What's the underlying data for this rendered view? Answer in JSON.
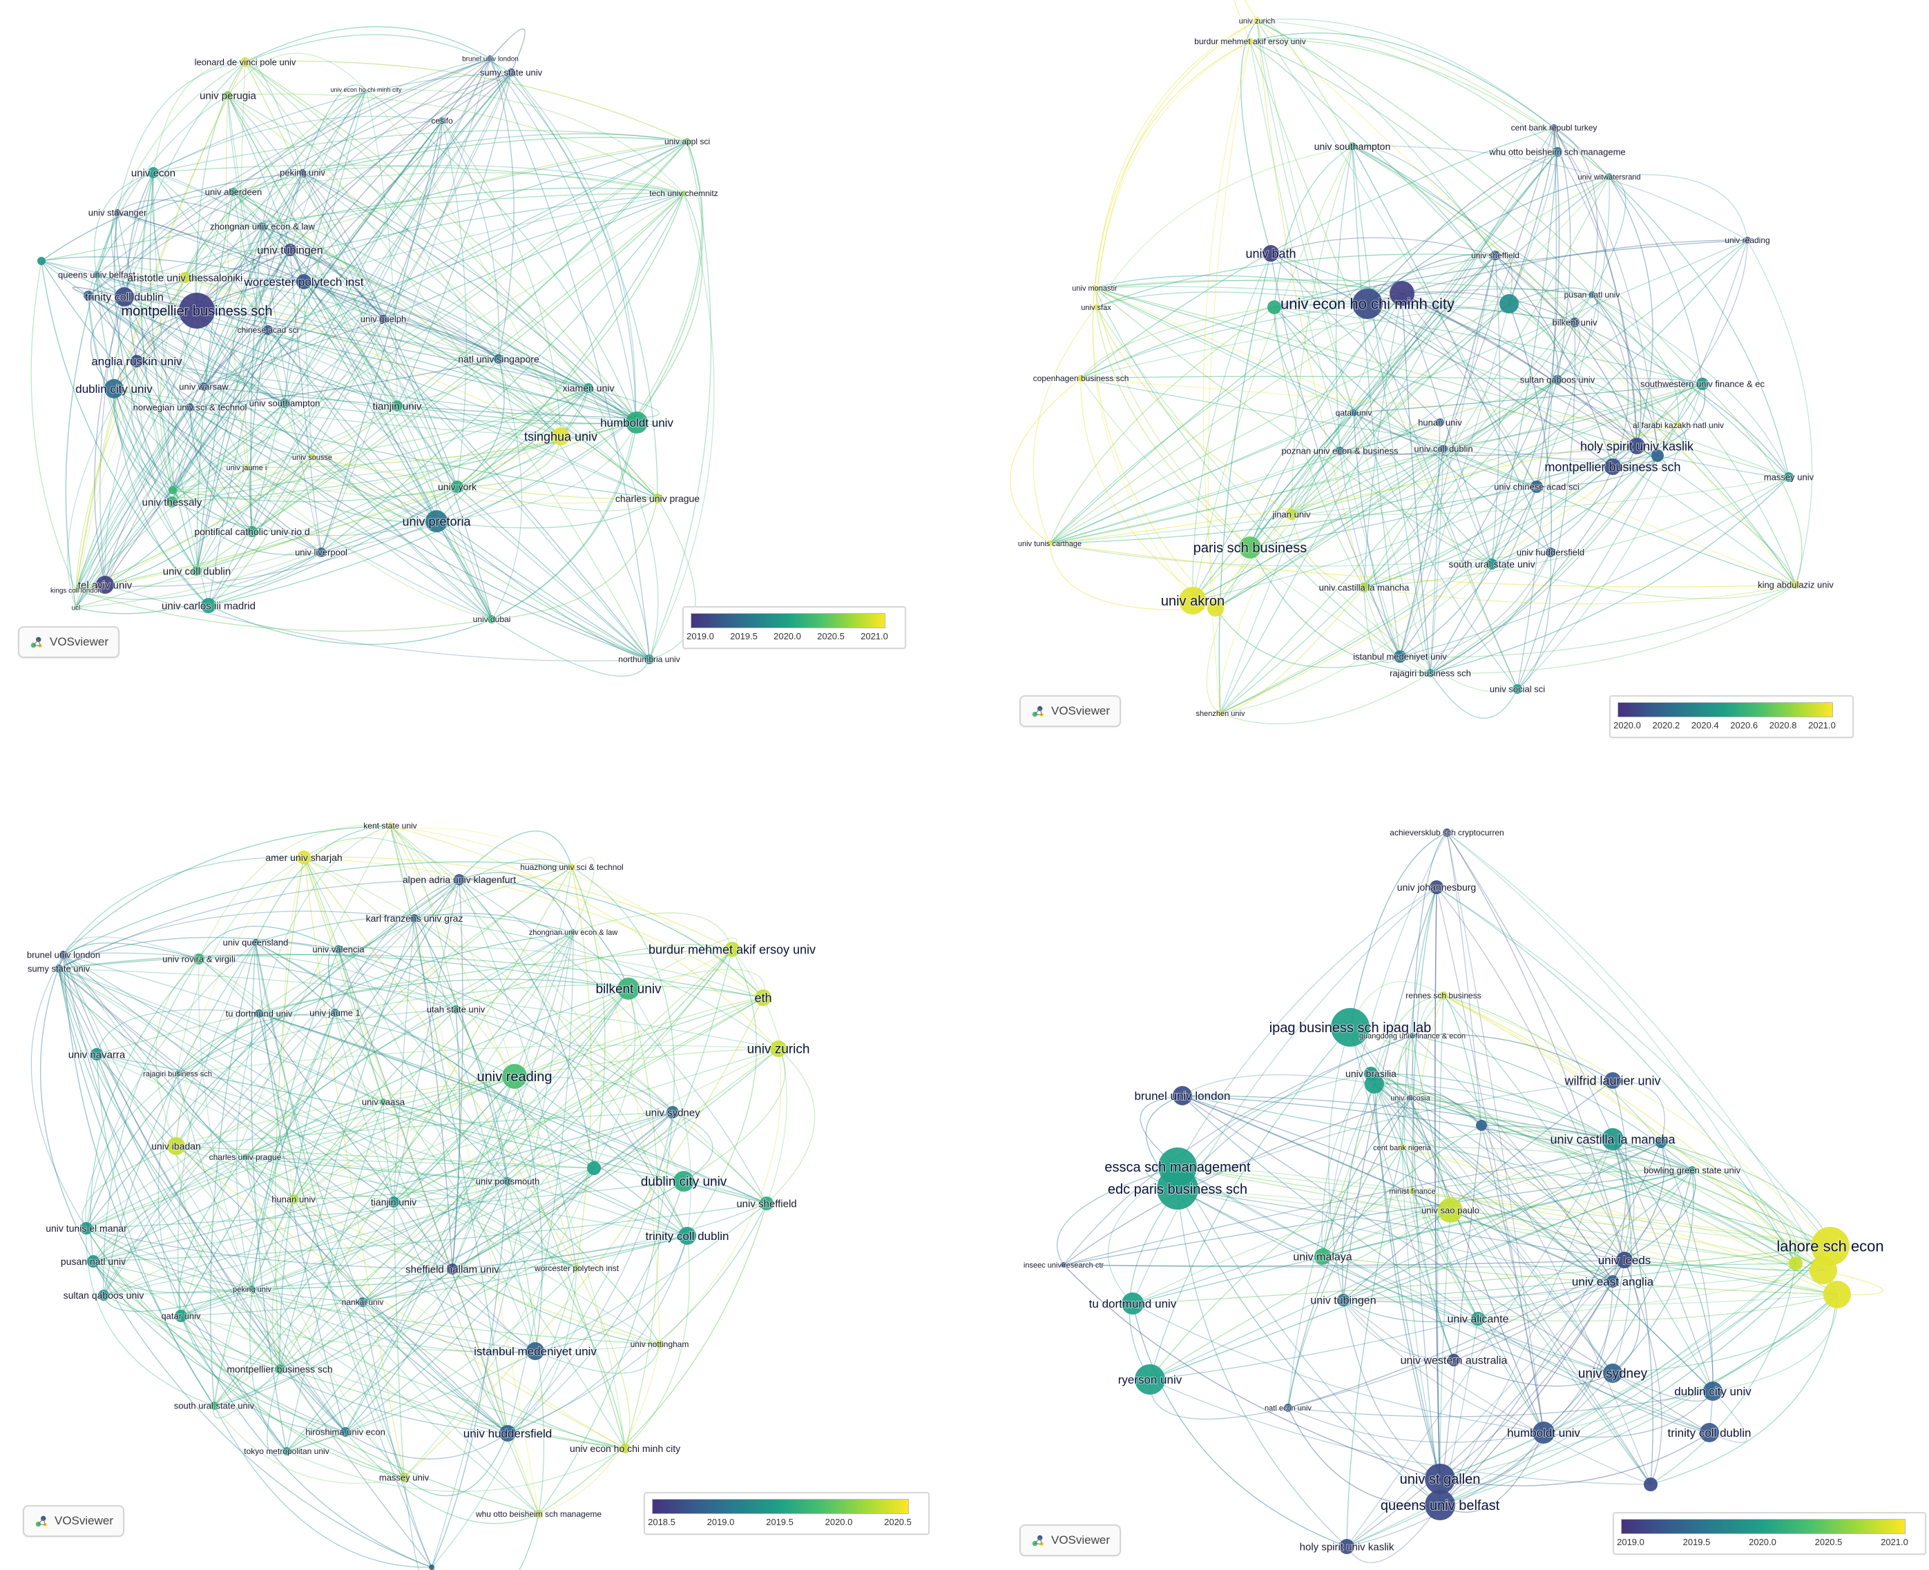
{
  "app": {
    "logo_text": "VOSviewer"
  },
  "colormap": [
    "#46327e",
    "#365c8d",
    "#277f8e",
    "#1fa187",
    "#4ac16d",
    "#a0da39",
    "#fde725"
  ],
  "panels": [
    {
      "id": "top-left",
      "legend_ticks": [
        "2019.0",
        "2019.5",
        "2020.0",
        "2020.5",
        "2021.0"
      ],
      "nodes": [
        {
          "label": "leonard de vinci pole univ",
          "t": 0.95
        },
        {
          "label": "univ econ ho chi minh city",
          "t": 0.6
        },
        {
          "label": "univ perugia",
          "t": 0.75
        },
        {
          "label": "brunel univ london",
          "t": 0.2
        },
        {
          "label": "sumy state univ",
          "t": 0.15
        },
        {
          "label": "cesifo",
          "t": 0.35
        },
        {
          "label": "univ appl sci",
          "t": 0.7
        },
        {
          "label": "tech univ chemnitz",
          "t": 0.8
        },
        {
          "label": "univ econ",
          "t": 0.5
        },
        {
          "label": "peking univ",
          "t": 0.1
        },
        {
          "label": "univ aberdeen",
          "t": 0.55
        },
        {
          "label": "univ stavanger",
          "t": 0.1
        },
        {
          "label": "zhongnan univ econ & law",
          "t": 0.3
        },
        {
          "label": "univ tubingen",
          "t": 0.1
        },
        {
          "label": "queens univ belfast",
          "t": 0.4
        },
        {
          "label": "aristotle univ thessaloniki",
          "t": 0.9
        },
        {
          "label": "worcester polytech inst",
          "t": 0.15
        },
        {
          "label": "trinity coll dublin",
          "t": 0.1
        },
        {
          "label": "montpellier business sch",
          "t": 0.05
        },
        {
          "label": "chinese acad sci",
          "t": 0.15
        },
        {
          "label": "univ guelph",
          "t": 0.1
        },
        {
          "label": "anglia ruskin univ",
          "t": 0.1
        },
        {
          "label": "natl univ singapore",
          "t": 0.3
        },
        {
          "label": "dublin city univ",
          "t": 0.25
        },
        {
          "label": "univ warsaw",
          "t": 0.2
        },
        {
          "label": "norwegian univ sci & technol",
          "t": 0.15
        },
        {
          "label": "univ southampton",
          "t": 0.45
        },
        {
          "label": "tianjin univ",
          "t": 0.55
        },
        {
          "label": "xiamen univ",
          "t": 0.5
        },
        {
          "label": "tsinghua univ",
          "t": 0.95
        },
        {
          "label": "humboldt univ",
          "t": 0.55
        },
        {
          "label": "univ jaume i",
          "t": 0.95
        },
        {
          "label": "univ sousse",
          "t": 0.9
        },
        {
          "label": "univ thessaly",
          "t": 0.6
        },
        {
          "label": "univ york",
          "t": 0.55
        },
        {
          "label": "charles univ prague",
          "t": 0.85
        },
        {
          "label": "univ pretoria",
          "t": 0.3
        },
        {
          "label": "pontifical catholic univ rio d",
          "t": 0.55
        },
        {
          "label": "univ liverpool",
          "t": 0.25
        },
        {
          "label": "univ coll dublin",
          "t": 0.6
        },
        {
          "label": "tel aviv univ",
          "t": 0.05
        },
        {
          "label": "kings coll london",
          "t": 0.85
        },
        {
          "label": "ucl",
          "t": 0.8
        },
        {
          "label": "univ carlos iii madrid",
          "t": 0.5
        },
        {
          "label": "univ dubai",
          "t": 0.6
        },
        {
          "label": "northumbria univ",
          "t": 0.45
        }
      ]
    },
    {
      "id": "top-right",
      "legend_ticks": [
        "2020.0",
        "2020.2",
        "2020.4",
        "2020.6",
        "2020.8",
        "2021.0"
      ],
      "nodes": [
        {
          "label": "univ zurich",
          "t": 0.95
        },
        {
          "label": "burdur mehmet akif ersoy univ",
          "t": 0.95
        },
        {
          "label": "cent bank republ turkey",
          "t": 0.1
        },
        {
          "label": "whu otto beisheim sch manageme",
          "t": 0.3
        },
        {
          "label": "univ southampton",
          "t": 0.55
        },
        {
          "label": "univ witwatersrand",
          "t": 0.5
        },
        {
          "label": "univ reading",
          "t": 0.1
        },
        {
          "label": "univ bath",
          "t": 0.05
        },
        {
          "label": "univ sheffield",
          "t": 0.2
        },
        {
          "label": "univ monastir",
          "t": 0.95
        },
        {
          "label": "univ sfax",
          "t": 0.95
        },
        {
          "label": "univ econ ho chi minh city",
          "t": 0.1
        },
        {
          "label": "pusan natl univ",
          "t": 0.3
        },
        {
          "label": "bilkent univ",
          "t": 0.15
        },
        {
          "label": "copenhagen business sch",
          "t": 0.95
        },
        {
          "label": "sultan qaboos univ",
          "t": 0.3
        },
        {
          "label": "southwestern univ finance & ec",
          "t": 0.45
        },
        {
          "label": "qatar univ",
          "t": 0.25
        },
        {
          "label": "hunan univ",
          "t": 0.2
        },
        {
          "label": "al farabi kazakh natl univ",
          "t": 0.95
        },
        {
          "label": "poznan univ econ & business",
          "t": 0.3
        },
        {
          "label": "univ coll dublin",
          "t": 0.2
        },
        {
          "label": "holy spirit univ kaslik",
          "t": 0.1
        },
        {
          "label": "montpellier business sch",
          "t": 0.1
        },
        {
          "label": "univ chinese acad sci",
          "t": 0.2
        },
        {
          "label": "massey univ",
          "t": 0.45
        },
        {
          "label": "jinan univ",
          "t": 0.9
        },
        {
          "label": "univ tunis carthage",
          "t": 0.95
        },
        {
          "label": "paris sch business",
          "t": 0.7
        },
        {
          "label": "univ huddersfield",
          "t": 0.2
        },
        {
          "label": "south ural state univ",
          "t": 0.45
        },
        {
          "label": "univ castilla la mancha",
          "t": 0.85
        },
        {
          "label": "king abdulaziz univ",
          "t": 0.95
        },
        {
          "label": "univ akron",
          "t": 0.95
        },
        {
          "label": "istanbul medeniyet univ",
          "t": 0.3
        },
        {
          "label": "rajagiri business sch",
          "t": 0.45
        },
        {
          "label": "univ social sci",
          "t": 0.5
        },
        {
          "label": "shenzhen univ",
          "t": 0.95
        }
      ]
    },
    {
      "id": "bottom-left",
      "legend_ticks": [
        "2018.5",
        "2019.0",
        "2019.5",
        "2020.0",
        "2020.5"
      ],
      "nodes": [
        {
          "label": "kent state univ",
          "t": 0.95
        },
        {
          "label": "amer univ sharjah",
          "t": 0.95
        },
        {
          "label": "huazhong univ sci & technol",
          "t": 0.95
        },
        {
          "label": "alpen adria univ klagenfurt",
          "t": 0.15
        },
        {
          "label": "karl franzens univ graz",
          "t": 0.2
        },
        {
          "label": "zhongnan univ econ & law",
          "t": 0.55
        },
        {
          "label": "univ queensland",
          "t": 0.3
        },
        {
          "label": "burdur mehmet akif ersoy univ",
          "t": 0.9
        },
        {
          "label": "brunel univ london",
          "t": 0.1
        },
        {
          "label": "sumy state univ",
          "t": 0.3
        },
        {
          "label": "univ rovira & virgili",
          "t": 0.6
        },
        {
          "label": "univ valencia",
          "t": 0.4
        },
        {
          "label": "bilkent univ",
          "t": 0.6
        },
        {
          "label": "eth",
          "t": 0.9
        },
        {
          "label": "tu dortmund univ",
          "t": 0.3
        },
        {
          "label": "univ jaume 1",
          "t": 0.4
        },
        {
          "label": "utah state univ",
          "t": 0.5
        },
        {
          "label": "univ zurich",
          "t": 0.9
        },
        {
          "label": "univ navarra",
          "t": 0.45
        },
        {
          "label": "univ reading",
          "t": 0.65
        },
        {
          "label": "rajagiri business sch",
          "t": 0.45
        },
        {
          "label": "univ vaasa",
          "t": 0.6
        },
        {
          "label": "univ sydney",
          "t": 0.25
        },
        {
          "label": "univ ibadan",
          "t": 0.9
        },
        {
          "label": "charles univ prague",
          "t": 0.55
        },
        {
          "label": "univ portsmouth",
          "t": 0.4
        },
        {
          "label": "dublin city univ",
          "t": 0.55
        },
        {
          "label": "hunan univ",
          "t": 0.85
        },
        {
          "label": "tianjin univ",
          "t": 0.45
        },
        {
          "label": "univ sheffield",
          "t": 0.55
        },
        {
          "label": "univ tunis el manar",
          "t": 0.45
        },
        {
          "label": "trinity coll dublin",
          "t": 0.5
        },
        {
          "label": "pusan natl univ",
          "t": 0.45
        },
        {
          "label": "sheffield hallam univ",
          "t": 0.1
        },
        {
          "label": "worcester polytech inst",
          "t": 0.8
        },
        {
          "label": "sultan qaboos univ",
          "t": 0.45
        },
        {
          "label": "peking univ",
          "t": 0.55
        },
        {
          "label": "nankai univ",
          "t": 0.35
        },
        {
          "label": "qatar univ",
          "t": 0.5
        },
        {
          "label": "istanbul medeniyet univ",
          "t": 0.2
        },
        {
          "label": "univ nottingham",
          "t": 0.9
        },
        {
          "label": "montpellier business sch",
          "t": 0.6
        },
        {
          "label": "south ural state univ",
          "t": 0.6
        },
        {
          "label": "hiroshima univ econ",
          "t": 0.35
        },
        {
          "label": "univ huddersfield",
          "t": 0.2
        },
        {
          "label": "univ econ ho chi minh city",
          "t": 0.9
        },
        {
          "label": "tokyo metropolitan univ",
          "t": 0.45
        },
        {
          "label": "massey univ",
          "t": 0.85
        },
        {
          "label": "whu otto beisheim sch manageme",
          "t": 0.9
        }
      ]
    },
    {
      "id": "bottom-right",
      "legend_ticks": [
        "2019.0",
        "2019.5",
        "2020.0",
        "2020.5",
        "2021.0"
      ],
      "nodes": [
        {
          "label": "achieversklub sch cryptocurren",
          "t": 0.1
        },
        {
          "label": "univ johannesburg",
          "t": 0.1
        },
        {
          "label": "rennes sch business",
          "t": 0.9
        },
        {
          "label": "ipag business sch ipag lab",
          "t": 0.5
        },
        {
          "label": "guangdong univ finance & econ",
          "t": 0.3
        },
        {
          "label": "univ brasilia",
          "t": 0.45
        },
        {
          "label": "wilfrid laurier univ",
          "t": 0.15
        },
        {
          "label": "brunel univ london",
          "t": 0.1
        },
        {
          "label": "univ nicosia",
          "t": 0.2
        },
        {
          "label": "essca sch management",
          "t": 0.5
        },
        {
          "label": "univ castilla la mancha",
          "t": 0.45
        },
        {
          "label": "edc paris business sch",
          "t": 0.5
        },
        {
          "label": "cent bank nigeria",
          "t": 0.9
        },
        {
          "label": "bowling green state univ",
          "t": 0.5
        },
        {
          "label": "minist finance",
          "t": 0.9
        },
        {
          "label": "univ sao paulo",
          "t": 0.9
        },
        {
          "label": "lahore sch econ",
          "t": 0.95
        },
        {
          "label": "univ malaya",
          "t": 0.6
        },
        {
          "label": "inseec univ research ctr",
          "t": 0.1
        },
        {
          "label": "univ leeds",
          "t": 0.1
        },
        {
          "label": "univ east anglia",
          "t": 0.2
        },
        {
          "label": "tu dortmund univ",
          "t": 0.5
        },
        {
          "label": "univ tubingen",
          "t": 0.3
        },
        {
          "label": "univ alicante",
          "t": 0.5
        },
        {
          "label": "univ western australia",
          "t": 0.1
        },
        {
          "label": "ryerson univ",
          "t": 0.5
        },
        {
          "label": "univ sydney",
          "t": 0.2
        },
        {
          "label": "dublin city univ",
          "t": 0.2
        },
        {
          "label": "natl econ univ",
          "t": 0.2
        },
        {
          "label": "humboldt univ",
          "t": 0.15
        },
        {
          "label": "trinity coll dublin",
          "t": 0.15
        },
        {
          "label": "univ st gallen",
          "t": 0.1
        },
        {
          "label": "queens univ belfast",
          "t": 0.1
        },
        {
          "label": "holy spirit univ kaslik",
          "t": 0.1
        }
      ]
    }
  ]
}
